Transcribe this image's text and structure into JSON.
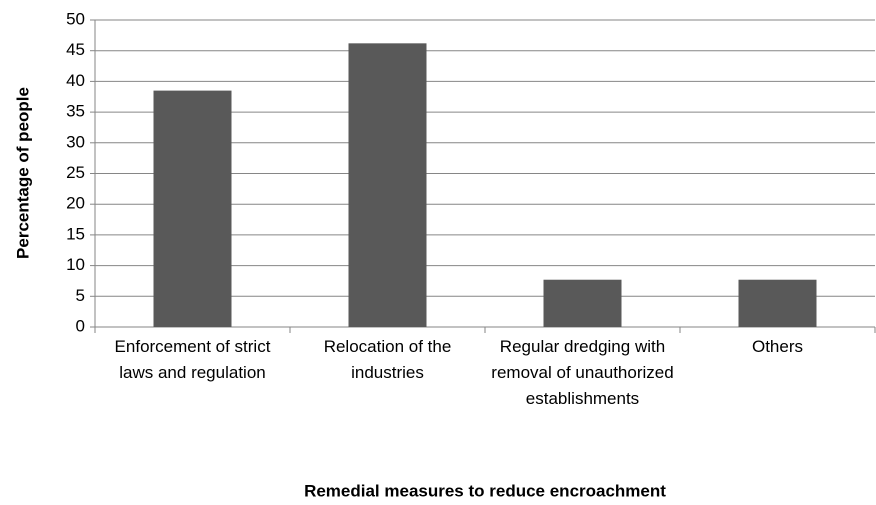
{
  "chart_data": {
    "type": "bar",
    "x_label": "Remedial measures to reduce encroachment",
    "y_label": "Percentage of people",
    "categories": [
      "Enforcement of strict laws and regulation",
      "Relocation of the industries",
      "Regular dredging with removal of unauthorized establishments",
      "Others"
    ],
    "values": [
      38.5,
      46.2,
      7.7,
      7.7
    ],
    "color": "#595959",
    "ylim": [
      0,
      50
    ],
    "yticks": [
      0,
      5,
      10,
      15,
      20,
      25,
      30,
      35,
      40,
      45,
      50
    ],
    "grid": true
  }
}
